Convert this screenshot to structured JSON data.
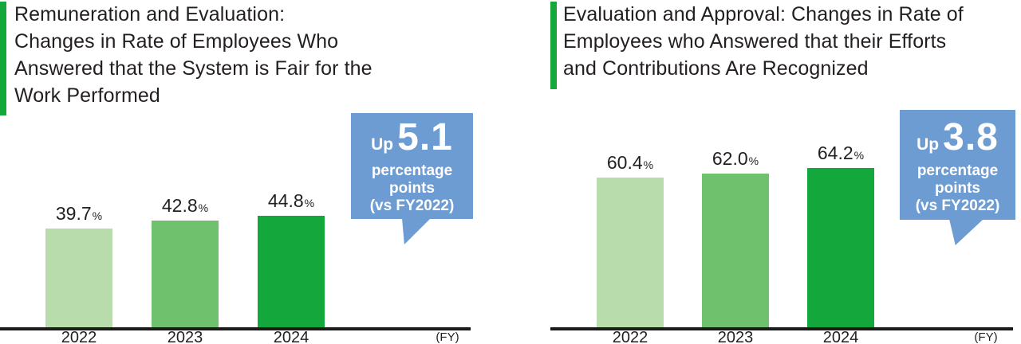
{
  "colors": {
    "accent_green": "#14a83c",
    "bar_2022": "#b9dcad",
    "bar_2023": "#70c16e",
    "bar_2024": "#14a83c",
    "callout_blue": "#6d9cd3",
    "title_text": "#231f20",
    "axis_black": "#1a1a1a"
  },
  "chart_data": [
    {
      "type": "bar",
      "title": "Remuneration and Evaluation: Changes in Rate of Employees Who Answered that the System is Fair for the Work Performed",
      "title_lines": [
        "Remuneration and Evaluation:",
        "Changes in Rate of Employees Who",
        "Answered that the System is Fair for the",
        "Work Performed"
      ],
      "categories": [
        "2022",
        "2023",
        "2024"
      ],
      "values": [
        39.7,
        42.8,
        44.8
      ],
      "value_labels": [
        "39.7",
        "42.8",
        "44.8"
      ],
      "unit": "%",
      "xlabel": "(FY)",
      "ylabel": "",
      "ylim": [
        0,
        70
      ],
      "grid": false,
      "legend": "none",
      "bar_colors": [
        "#b9dcad",
        "#70c16e",
        "#14a83c"
      ],
      "annotation": "Up 5.1 percentage points (vs FY2022)",
      "callout": {
        "prefix": "Up",
        "value": "5.1",
        "line2": "percentage",
        "line3": "points",
        "line4": "(vs FY2022)"
      }
    },
    {
      "type": "bar",
      "title": "Evaluation and Approval: Changes in Rate of Employees who Answered that their Efforts and Contributions Are Recognized",
      "title_lines": [
        "Evaluation and Approval: Changes in Rate of",
        "Employees who Answered that their Efforts",
        "and Contributions Are Recognized"
      ],
      "categories": [
        "2022",
        "2023",
        "2024"
      ],
      "values": [
        60.4,
        62.0,
        64.2
      ],
      "value_labels": [
        "60.4",
        "62.0",
        "64.2"
      ],
      "unit": "%",
      "xlabel": "(FY)",
      "ylabel": "",
      "ylim": [
        0,
        70
      ],
      "grid": false,
      "legend": "none",
      "bar_colors": [
        "#b9dcad",
        "#70c16e",
        "#14a83c"
      ],
      "annotation": "Up 3.8 percentage points (vs FY2022)",
      "callout": {
        "prefix": "Up",
        "value": "3.8",
        "line2": "percentage",
        "line3": "points",
        "line4": "(vs FY2022)"
      }
    }
  ]
}
